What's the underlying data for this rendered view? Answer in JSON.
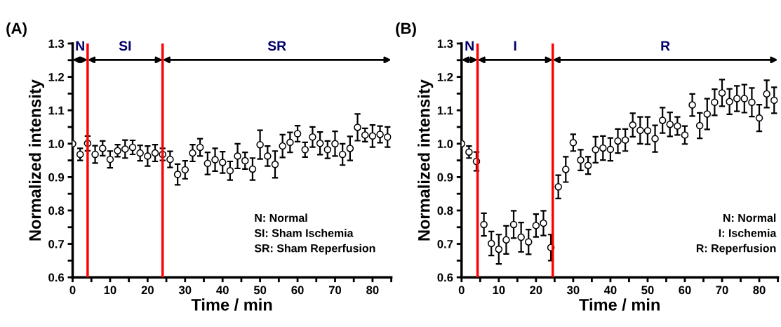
{
  "chart_data": [
    {
      "type": "scatter",
      "title": "(A)",
      "xlabel": "Time / min",
      "ylabel": "Normalized intensity",
      "x": [
        0,
        2,
        4,
        6,
        8,
        10,
        12,
        14,
        16,
        18,
        20,
        22,
        24,
        26,
        28,
        30,
        32,
        34,
        36,
        38,
        40,
        42,
        44,
        46,
        48,
        50,
        52,
        54,
        56,
        58,
        60,
        62,
        64,
        66,
        68,
        70,
        72,
        74,
        76,
        78,
        80,
        82,
        84
      ],
      "series": [
        {
          "color": "#000000",
          "values": [
            1.0,
            0.968,
            1.001,
            0.968,
            0.986,
            0.953,
            0.979,
            0.984,
            0.989,
            0.972,
            0.963,
            0.972,
            0.968,
            0.953,
            0.908,
            0.922,
            0.972,
            0.989,
            0.941,
            0.952,
            0.944,
            0.919,
            0.963,
            0.949,
            0.924,
            0.997,
            0.963,
            0.938,
            0.993,
            1.004,
            1.03,
            0.982,
            1.02,
            1.001,
            0.982,
            1.0,
            0.968,
            0.986,
            1.049,
            1.026,
            1.023,
            1.028,
            1.02
          ],
          "errors": [
            null,
            0.018,
            0.022,
            0.026,
            0.022,
            0.025,
            0.018,
            0.027,
            0.021,
            0.023,
            0.03,
            0.025,
            0.018,
            0.024,
            0.031,
            0.027,
            0.025,
            0.026,
            0.033,
            0.034,
            0.032,
            0.028,
            0.037,
            0.025,
            0.033,
            0.043,
            0.03,
            0.04,
            0.034,
            0.03,
            0.024,
            0.022,
            0.03,
            0.034,
            0.026,
            0.037,
            0.032,
            0.036,
            0.04,
            0.02,
            0.033,
            0.025,
            0.03
          ]
        }
      ],
      "marker": "circle",
      "xlim": [
        0,
        85
      ],
      "xticks": [
        0,
        {
          "value": 5,
          "label": null
        },
        10,
        {
          "value": 15,
          "label": null
        },
        20,
        {
          "value": 25,
          "label": null
        },
        30,
        {
          "value": 35,
          "label": null
        },
        40,
        {
          "value": 45,
          "label": null
        },
        50,
        {
          "value": 55,
          "label": null
        },
        60,
        {
          "value": 65,
          "label": null
        },
        70,
        {
          "value": 75,
          "label": null
        },
        80,
        {
          "value": 85,
          "label": null
        }
      ],
      "ylim": [
        0.6,
        1.3
      ],
      "yticks": [
        0.6,
        {
          "value": 0.65,
          "label": null
        },
        0.7,
        {
          "value": 0.75,
          "label": null
        },
        0.8,
        {
          "value": 0.85,
          "label": null
        },
        0.9,
        {
          "value": 0.95,
          "label": null
        },
        {
          "value": 1,
          "label": "1.0"
        },
        {
          "value": 1.05,
          "label": null
        },
        1.1,
        {
          "value": 1.15,
          "label": null
        },
        1.2,
        {
          "value": 1.25,
          "label": null
        },
        1.3
      ],
      "ref_lines": [
        {
          "axis": "x",
          "value": 4,
          "color": "#ff0000"
        },
        {
          "axis": "x",
          "value": 24,
          "color": "#ff0000"
        }
      ],
      "annotations": [
        "N",
        "SI",
        "SR",
        "N: Normal",
        "SI: Sham Ischemia",
        "SR: Sham Reperfusion"
      ],
      "grid": false,
      "legend": false
    },
    {
      "type": "scatter",
      "title": "(B)",
      "xlabel": "Time / min",
      "ylabel": "Normalized intensity",
      "x": [
        0,
        2,
        4,
        6,
        8,
        10,
        12,
        14,
        16,
        18,
        20,
        22,
        24,
        26,
        28,
        30,
        32,
        34,
        36,
        38,
        40,
        42,
        44,
        46,
        48,
        50,
        52,
        54,
        56,
        58,
        60,
        62,
        64,
        66,
        68,
        70,
        72,
        74,
        76,
        78,
        80,
        82,
        84
      ],
      "series": [
        {
          "color": "#000000",
          "values": [
            1.0,
            0.975,
            0.947,
            0.758,
            0.701,
            0.684,
            0.712,
            0.758,
            0.72,
            0.706,
            0.755,
            0.762,
            0.689,
            0.871,
            0.923,
            1.003,
            0.951,
            0.935,
            0.982,
            0.987,
            0.983,
            1.008,
            1.011,
            1.056,
            1.04,
            1.039,
            1.015,
            1.07,
            1.058,
            1.053,
            1.026,
            1.116,
            1.054,
            1.089,
            1.124,
            1.152,
            1.126,
            1.135,
            1.135,
            1.124,
            1.077,
            1.149,
            1.13
          ],
          "errors": [
            null,
            0.018,
            0.028,
            0.034,
            0.036,
            0.044,
            0.042,
            0.041,
            0.044,
            0.037,
            0.034,
            0.037,
            0.039,
            0.035,
            0.038,
            0.025,
            0.031,
            0.026,
            0.039,
            0.036,
            0.034,
            0.036,
            0.033,
            0.035,
            0.04,
            0.041,
            0.04,
            0.038,
            0.036,
            0.027,
            0.027,
            0.033,
            0.038,
            0.046,
            0.039,
            0.04,
            0.038,
            0.038,
            0.042,
            0.043,
            0.04,
            0.041,
            0.039
          ]
        }
      ],
      "marker": "circle",
      "xlim": [
        0,
        85
      ],
      "xticks": [
        0,
        {
          "value": 5,
          "label": null
        },
        10,
        {
          "value": 15,
          "label": null
        },
        20,
        {
          "value": 25,
          "label": null
        },
        30,
        {
          "value": 35,
          "label": null
        },
        40,
        {
          "value": 45,
          "label": null
        },
        50,
        {
          "value": 55,
          "label": null
        },
        60,
        {
          "value": 65,
          "label": null
        },
        70,
        {
          "value": 75,
          "label": null
        },
        80,
        {
          "value": 85,
          "label": null
        }
      ],
      "ylim": [
        0.6,
        1.3
      ],
      "yticks": [
        0.6,
        {
          "value": 0.65,
          "label": null
        },
        0.7,
        {
          "value": 0.75,
          "label": null
        },
        0.8,
        {
          "value": 0.85,
          "label": null
        },
        0.9,
        {
          "value": 0.95,
          "label": null
        },
        {
          "value": 1,
          "label": "1.0"
        },
        {
          "value": 1.05,
          "label": null
        },
        1.1,
        {
          "value": 1.15,
          "label": null
        },
        1.2,
        {
          "value": 1.25,
          "label": null
        },
        1.3
      ],
      "ref_lines": [
        {
          "axis": "x",
          "value": 4.3,
          "color": "#ff0000"
        },
        {
          "axis": "x",
          "value": 24.5,
          "color": "#ff0000"
        }
      ],
      "annotations": [
        "N",
        "I",
        "R",
        "N: Normal",
        "I: Ischemia",
        "R: Reperfusion"
      ],
      "grid": false,
      "legend": false
    }
  ]
}
